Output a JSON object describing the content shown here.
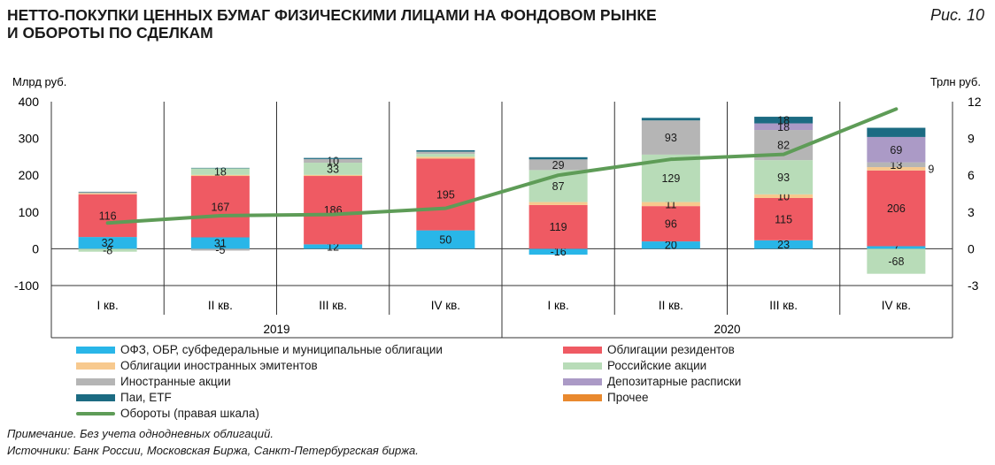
{
  "title": {
    "line1": "НЕТТО-ПОКУПКИ ЦЕННЫХ БУМАГ ФИЗИЧЕСКИМИ ЛИЦАМИ НА ФОНДОВОМ РЫНКЕ",
    "line2": "И ОБОРОТЫ ПО СДЕЛКАМ",
    "figure_number": "Рис. 10"
  },
  "notes": {
    "note": "Примечание. Без учета однодневных облигаций.",
    "sources": "Источники: Банк России, Московская Биржа, Санкт-Петербургская биржа."
  },
  "chart_data": {
    "type": "bar",
    "stacked": true,
    "categories": [
      "I кв.",
      "II кв.",
      "III кв.",
      "IV кв.",
      "I кв.",
      "II кв.",
      "III кв.",
      "IV кв."
    ],
    "groups": [
      {
        "label": "2019",
        "from": 0,
        "to": 3
      },
      {
        "label": "2020",
        "from": 4,
        "to": 7
      }
    ],
    "ylabel_left": "Млрд руб.",
    "ylabel_right": "Трлн руб.",
    "ylim": [
      -100,
      400
    ],
    "yticks": [
      -100,
      0,
      100,
      200,
      300,
      400
    ],
    "ylim_right": [
      -3,
      12
    ],
    "yticks_right": [
      -3,
      0,
      3,
      6,
      9,
      12
    ],
    "grid": "vertical separators between quarters",
    "series": [
      {
        "name": "ОФЗ, ОБР, субфедеральные и муниципальные облигации",
        "color": "#29b6e8",
        "values": [
          32,
          31,
          12,
          50,
          -16,
          20,
          23,
          7
        ],
        "labels": [
          "32",
          "31",
          "12",
          "50",
          "-16",
          "20",
          "23",
          "7"
        ]
      },
      {
        "name": "Облигации резидентов",
        "color": "#ef5a63",
        "values": [
          116,
          167,
          186,
          195,
          119,
          96,
          115,
          206
        ],
        "labels": [
          "116",
          "167",
          "186",
          "195",
          "119",
          "96",
          "115",
          "206"
        ]
      },
      {
        "name": "Облигации иностранных эмитентов",
        "color": "#f7c98e",
        "values": [
          3,
          3,
          3,
          5,
          8,
          11,
          10,
          9
        ],
        "labels": [
          "",
          "",
          "",
          "",
          "",
          "11",
          "10",
          "9"
        ]
      },
      {
        "name": "Российские акции",
        "color": "#b8dcb8",
        "values": [
          -8,
          18,
          33,
          8,
          87,
          129,
          93,
          -68
        ],
        "labels": [
          "-8",
          "18",
          "33",
          "",
          "87",
          "129",
          "93",
          "-68"
        ]
      },
      {
        "name": "Иностранные акции",
        "color": "#b5b5b5",
        "values": [
          3,
          -5,
          10,
          6,
          29,
          93,
          82,
          13
        ],
        "labels": [
          "",
          "-5",
          "10",
          "",
          "29",
          "93",
          "82",
          "13"
        ]
      },
      {
        "name": "Депозитарные расписки",
        "color": "#ab9ac6",
        "values": [
          0,
          0,
          0,
          0,
          0,
          0,
          18,
          69
        ],
        "labels": [
          "",
          "",
          "",
          "",
          "",
          "",
          "18",
          "69"
        ]
      },
      {
        "name": "Паи, ETF",
        "color": "#1c6b82",
        "values": [
          1,
          1,
          3,
          4,
          6,
          7,
          18,
          25
        ],
        "labels": [
          "",
          "",
          "",
          "",
          "",
          "",
          "18",
          ""
        ]
      },
      {
        "name": "Прочее",
        "color": "#e9892e",
        "values": [
          0,
          0,
          0,
          0,
          0,
          0,
          0,
          0
        ],
        "labels": [
          "",
          "",
          "",
          "",
          "",
          "",
          "",
          ""
        ]
      }
    ],
    "line": {
      "name": "Обороты (правая шкала)",
      "color": "#5e9c57",
      "axis": "right",
      "values": [
        2.1,
        2.7,
        2.8,
        3.3,
        6.0,
        7.3,
        7.7,
        11.4
      ]
    },
    "legend_placement": "bottom, two columns"
  }
}
